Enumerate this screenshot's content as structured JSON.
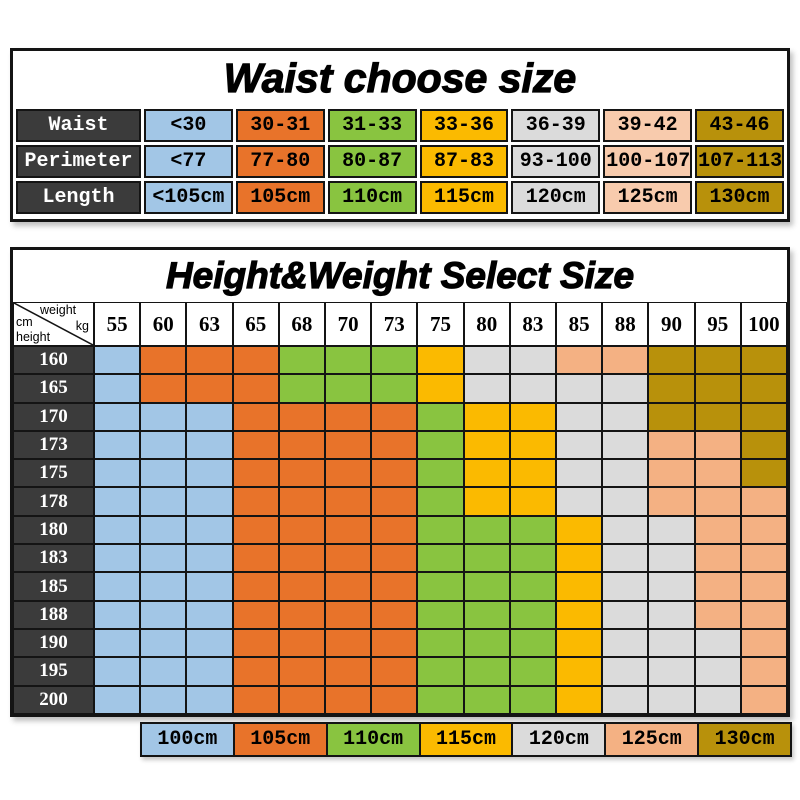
{
  "chart_data": [
    {
      "type": "table",
      "title": "Waist choose size",
      "row_labels": [
        "Waist",
        "Perimeter",
        "Length"
      ],
      "rows": [
        [
          "<30",
          "30-31",
          "31-33",
          "33-36",
          "36-39",
          "39-42",
          "43-46"
        ],
        [
          "<77",
          "77-80",
          "80-87",
          "87-83",
          "93-100",
          "100-107",
          "107-113"
        ],
        [
          "<105cm",
          "105cm",
          "110cm",
          "115cm",
          "120cm",
          "125cm",
          "130cm"
        ]
      ],
      "column_colors": [
        "#A2C6E6",
        "#E8732A",
        "#89C440",
        "#FBBA00",
        "#DBDBDB",
        "#F8CBAD",
        "#B8910B"
      ],
      "label_bg": "#3B3B3B"
    },
    {
      "type": "heatmap",
      "title": "Height&Weight Select Size",
      "corner": {
        "cm": "cm",
        "weight": "weight",
        "height": "height",
        "kg": "kg"
      },
      "weights_kg": [
        "55",
        "60",
        "63",
        "65",
        "68",
        "70",
        "73",
        "75",
        "80",
        "83",
        "85",
        "88",
        "90",
        "95",
        "100"
      ],
      "heights_cm": [
        "160",
        "165",
        "170",
        "173",
        "175",
        "178",
        "180",
        "183",
        "185",
        "188",
        "190",
        "195",
        "200"
      ],
      "palette": {
        "100": "#A2C6E6",
        "105": "#E8732A",
        "110": "#89C440",
        "115": "#FBBA00",
        "120": "#DBDBDB",
        "125": "#F4B183",
        "130": "#B8910B"
      },
      "cell_size_cm": [
        [
          "100",
          "105",
          "105",
          "105",
          "110",
          "110",
          "110",
          "115",
          "120",
          "120",
          "125",
          "125",
          "130",
          "130",
          "130"
        ],
        [
          "100",
          "105",
          "105",
          "105",
          "110",
          "110",
          "110",
          "115",
          "120",
          "120",
          "120",
          "120",
          "130",
          "130",
          "130"
        ],
        [
          "100",
          "100",
          "100",
          "105",
          "105",
          "105",
          "105",
          "110",
          "115",
          "115",
          "120",
          "120",
          "130",
          "130",
          "130"
        ],
        [
          "100",
          "100",
          "100",
          "105",
          "105",
          "105",
          "105",
          "110",
          "115",
          "115",
          "120",
          "120",
          "125",
          "125",
          "130"
        ],
        [
          "100",
          "100",
          "100",
          "105",
          "105",
          "105",
          "105",
          "110",
          "115",
          "115",
          "120",
          "120",
          "125",
          "125",
          "130"
        ],
        [
          "100",
          "100",
          "100",
          "105",
          "105",
          "105",
          "105",
          "110",
          "115",
          "115",
          "120",
          "120",
          "125",
          "125",
          "125"
        ],
        [
          "100",
          "100",
          "100",
          "105",
          "105",
          "105",
          "105",
          "110",
          "110",
          "110",
          "115",
          "120",
          "120",
          "125",
          "125"
        ],
        [
          "100",
          "100",
          "100",
          "105",
          "105",
          "105",
          "105",
          "110",
          "110",
          "110",
          "115",
          "120",
          "120",
          "125",
          "125"
        ],
        [
          "100",
          "100",
          "100",
          "105",
          "105",
          "105",
          "105",
          "110",
          "110",
          "110",
          "115",
          "120",
          "120",
          "125",
          "125"
        ],
        [
          "100",
          "100",
          "100",
          "105",
          "105",
          "105",
          "105",
          "110",
          "110",
          "110",
          "115",
          "120",
          "120",
          "125",
          "125"
        ],
        [
          "100",
          "100",
          "100",
          "105",
          "105",
          "105",
          "105",
          "110",
          "110",
          "110",
          "115",
          "120",
          "120",
          "120",
          "125"
        ],
        [
          "100",
          "100",
          "100",
          "105",
          "105",
          "105",
          "105",
          "110",
          "110",
          "110",
          "115",
          "120",
          "120",
          "120",
          "125"
        ],
        [
          "100",
          "100",
          "100",
          "105",
          "105",
          "105",
          "105",
          "110",
          "110",
          "110",
          "115",
          "120",
          "120",
          "120",
          "125"
        ]
      ],
      "legend": [
        {
          "label": "100cm",
          "size": "100"
        },
        {
          "label": "105cm",
          "size": "105"
        },
        {
          "label": "110cm",
          "size": "110"
        },
        {
          "label": "115cm",
          "size": "115"
        },
        {
          "label": "120cm",
          "size": "120"
        },
        {
          "label": "125cm",
          "size": "125"
        },
        {
          "label": "130cm",
          "size": "130"
        }
      ],
      "label_bg": "#3B3B3B"
    }
  ]
}
